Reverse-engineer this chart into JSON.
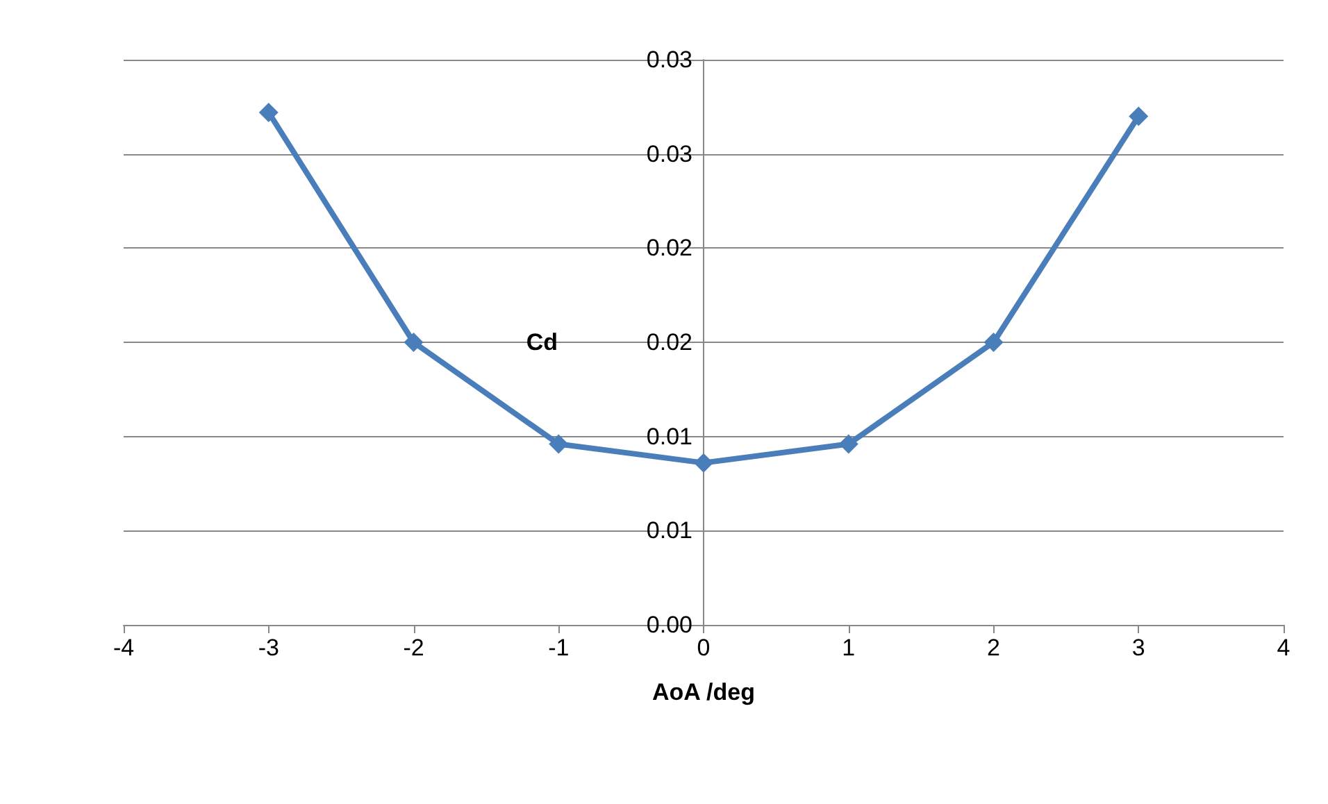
{
  "chart_data": {
    "type": "line",
    "xlabel": "AoA /deg",
    "ylabel": "Cd",
    "x": [
      -3,
      -2,
      -1,
      0,
      1,
      2,
      3
    ],
    "series": [
      {
        "color": "#4a7ebb",
        "values": [
          0.0272,
          0.015,
          0.0096,
          0.0086,
          0.0096,
          0.015,
          0.027
        ]
      }
    ],
    "xlim": [
      -4,
      4
    ],
    "xticks": [
      -4,
      -3,
      -2,
      -1,
      0,
      1,
      2,
      3,
      4
    ],
    "ylim": [
      0,
      0.03
    ],
    "yticks": [
      {
        "value": 0,
        "label": "0.00"
      },
      {
        "value": 0.005,
        "label": "0.01"
      },
      {
        "value": 0.01,
        "label": "0.01"
      },
      {
        "value": 0.015,
        "label": "0.02"
      },
      {
        "value": 0.02,
        "label": "0.02"
      },
      {
        "value": 0.025,
        "label": "0.03"
      },
      {
        "value": 0.03,
        "label": "0.03"
      }
    ],
    "grid": "y",
    "marker": "diamond",
    "line_style": "solid"
  }
}
